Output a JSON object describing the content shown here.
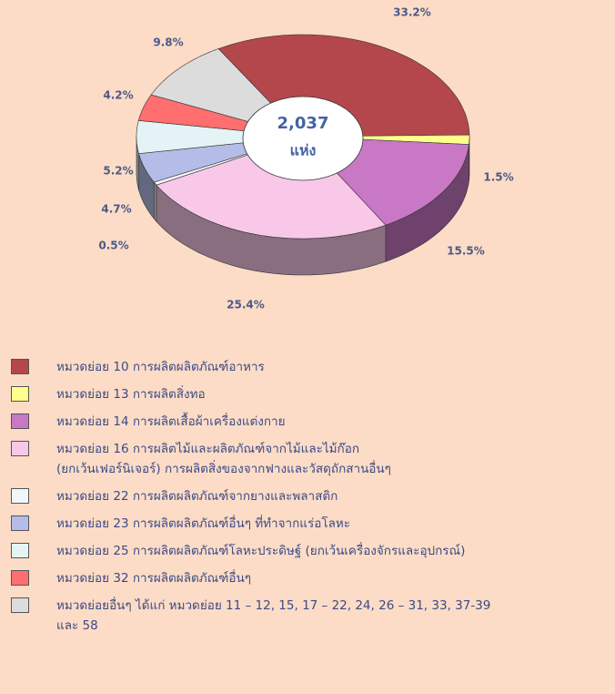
{
  "chart_data": {
    "type": "pie",
    "center_label": "2,037",
    "center_unit": "แห่ง",
    "categories": [
      "หมวดย่อย 10 การผลิตผลิตภัณฑ์อาหาร",
      "หมวดย่อย 13 การผลิตสิ่งทอ",
      "หมวดย่อย 14 การผลิตเสื้อผ้าเครื่องแต่งกาย",
      "หมวดย่อย 16 การผลิตไม้และผลิตภัณฑ์จากไม้และไม้ก๊อก\n(ยกเว้นเฟอร์นิเจอร์) การผลิตสิ่งของจากฟางและวัสดุถักสานอื่นๆ",
      "หมวดย่อย 22 การผลิตผลิตภัณฑ์จากยางและพลาสติก",
      "หมวดย่อย 23 การผลิตผลิตภัณฑ์อื่นๆ ที่ทำจากแร่อโลหะ",
      "หมวดย่อย 25 การผลิตผลิตภัณฑ์โลหะประดิษฐ์ (ยกเว้นเครื่องจักรและอุปกรณ์)",
      "หมวดย่อย 32 การผลิตผลิตภัณฑ์อื่นๆ",
      "หมวดย่อยอื่นๆ ได้แก่ หมวดย่อย 11 – 12, 15, 17 – 22, 24, 26 – 31, 33, 37-39\nและ 58"
    ],
    "values": [
      33.2,
      1.5,
      15.5,
      25.4,
      0.5,
      4.7,
      5.2,
      4.2,
      9.8
    ],
    "value_labels": [
      "33.2%",
      "1.5%",
      "15.5%",
      "25.4%",
      "0.5%",
      "4.7%",
      "5.2%",
      "4.2%",
      "9.8%"
    ],
    "colors": [
      "#b4474c",
      "#ffff8c",
      "#c878c4",
      "#f9c8e8",
      "#f2f6fa",
      "#b4bce8",
      "#e4f4f6",
      "#ff6f6f",
      "#dcdcdc"
    ]
  }
}
